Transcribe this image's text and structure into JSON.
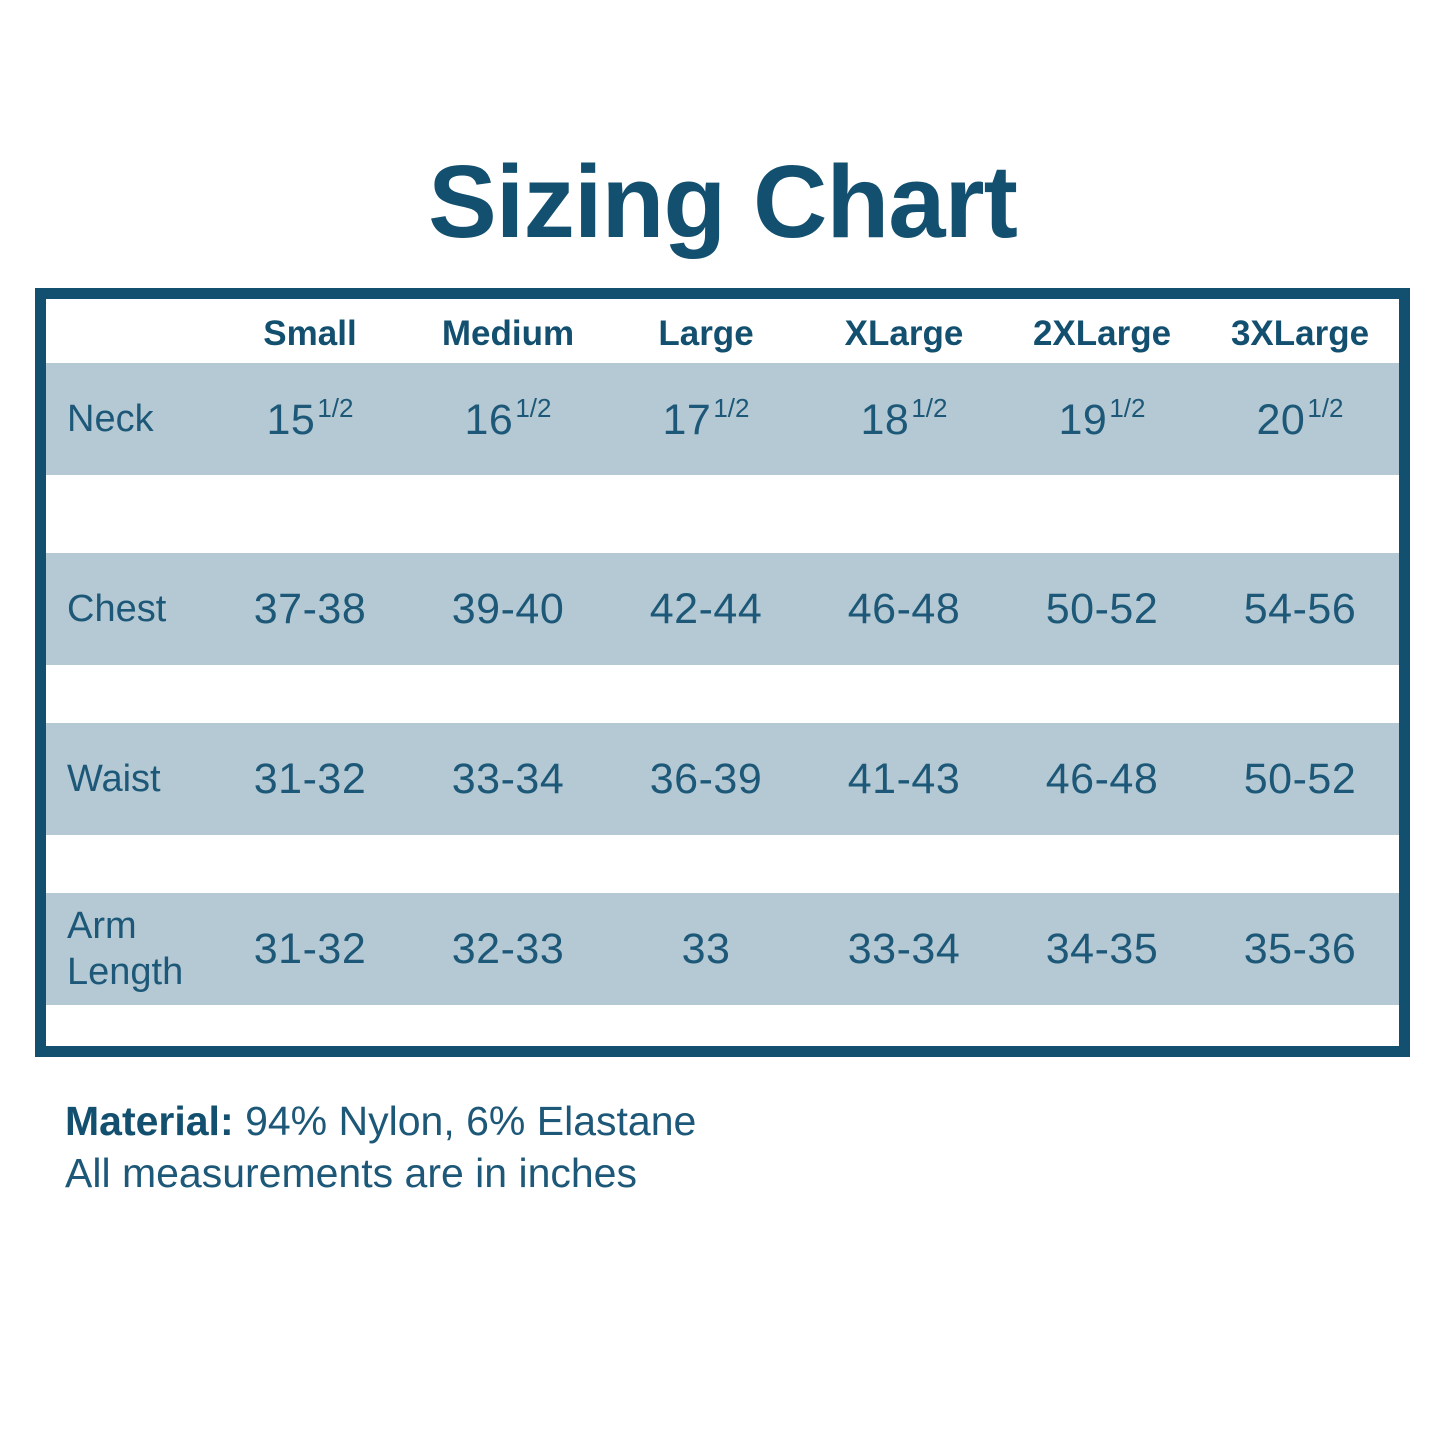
{
  "title": "Sizing Chart",
  "colors": {
    "ink": "#13506f",
    "data_text": "#1d5878",
    "row_fill": "#b4c9d3",
    "background": "#ffffff"
  },
  "table": {
    "size_headers": [
      "Small",
      "Medium",
      "Large",
      "XLarge",
      "2XLarge",
      "3XLarge"
    ],
    "rows": [
      {
        "label": "Neck",
        "values": [
          {
            "whole": "15",
            "frac": "1/2"
          },
          {
            "whole": "16",
            "frac": "1/2"
          },
          {
            "whole": "17",
            "frac": "1/2"
          },
          {
            "whole": "18",
            "frac": "1/2"
          },
          {
            "whole": "19",
            "frac": "1/2"
          },
          {
            "whole": "20",
            "frac": "1/2"
          }
        ]
      },
      {
        "label": "Chest",
        "values": [
          "37-38",
          "39-40",
          "42-44",
          "46-48",
          "50-52",
          "54-56"
        ]
      },
      {
        "label": "Waist",
        "values": [
          "31-32",
          "33-34",
          "36-39",
          "41-43",
          "46-48",
          "50-52"
        ]
      },
      {
        "label": "Arm Length",
        "values": [
          "31-32",
          "32-33",
          "33",
          "33-34",
          "34-35",
          "35-36"
        ]
      }
    ]
  },
  "footer": {
    "material_label": "Material:",
    "material_value": "94% Nylon, 6% Elastane",
    "note": "All measurements are in inches"
  },
  "chart_data": {
    "type": "table",
    "title": "Sizing Chart",
    "columns": [
      "",
      "Small",
      "Medium",
      "Large",
      "XLarge",
      "2XLarge",
      "3XLarge"
    ],
    "rows": [
      [
        "Neck",
        "15 1/2",
        "16 1/2",
        "17 1/2",
        "18 1/2",
        "19 1/2",
        "20 1/2"
      ],
      [
        "Chest",
        "37-38",
        "39-40",
        "42-44",
        "46-48",
        "50-52",
        "54-56"
      ],
      [
        "Waist",
        "31-32",
        "33-34",
        "36-39",
        "41-43",
        "46-48",
        "50-52"
      ],
      [
        "Arm Length",
        "31-32",
        "32-33",
        "33",
        "33-34",
        "34-35",
        "35-36"
      ]
    ],
    "units": "inches",
    "notes": [
      "Material: 94% Nylon, 6% Elastane",
      "All measurements are in inches"
    ]
  }
}
